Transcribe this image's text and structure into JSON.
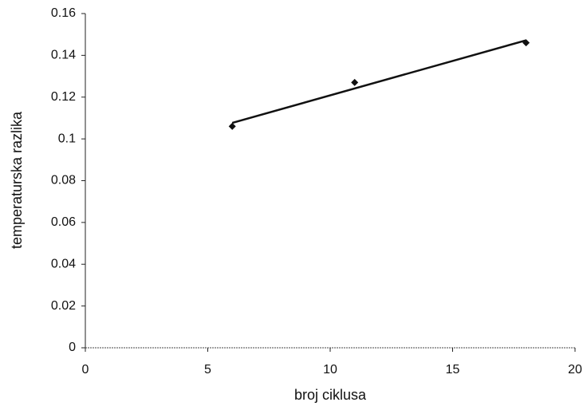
{
  "chart_data": {
    "type": "scatter",
    "x_label": "broj ciklusa",
    "y_label": "temperaturska razlika",
    "series": [
      {
        "name": null,
        "color": "#111111",
        "x": [
          6,
          11,
          18
        ],
        "values": [
          0.106,
          0.127,
          0.146
        ]
      }
    ],
    "trendline": "linear",
    "xlim": [
      0,
      20
    ],
    "xticks": [
      0,
      5,
      10,
      15,
      20
    ],
    "ylim": [
      0,
      0.16
    ],
    "yticks": [
      0,
      0.02,
      0.04,
      0.06,
      0.08,
      0.1,
      0.12,
      0.14,
      0.16
    ],
    "grid": false
  }
}
